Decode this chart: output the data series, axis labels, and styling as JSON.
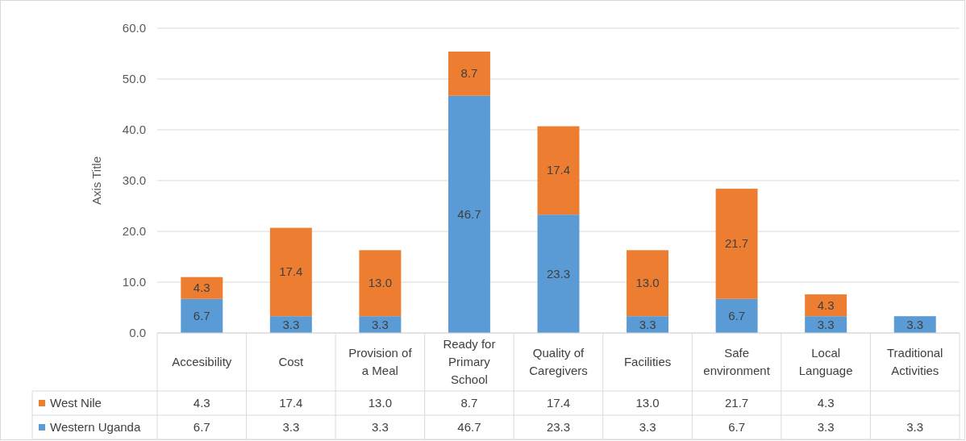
{
  "chart_data": {
    "type": "bar",
    "stacked": true,
    "ylabel": "Axis Title",
    "categories": [
      "Accesibility",
      "Cost",
      "Provision of a Meal",
      "Ready for Primary School",
      "Quality of Caregivers",
      "Facilities",
      "Safe environment",
      "Local Language",
      "Traditional Activities"
    ],
    "series": [
      {
        "name": "Western Uganda",
        "color": "#5b9bd5",
        "values": [
          6.7,
          3.3,
          3.3,
          46.7,
          23.3,
          3.3,
          6.7,
          3.3,
          3.3
        ],
        "value_labels": [
          "6.7",
          "3.3",
          "3.3",
          "46.7",
          "23.3",
          "3.3",
          "6.7",
          "3.3",
          "3.3"
        ]
      },
      {
        "name": "West Nile",
        "color": "#ed7d31",
        "values": [
          4.3,
          17.4,
          13.0,
          8.7,
          17.4,
          13.0,
          21.7,
          4.3,
          null
        ],
        "value_labels": [
          "4.3",
          "17.4",
          "13.0",
          "8.7",
          "17.4",
          "13.0",
          "21.7",
          "4.3",
          null
        ]
      }
    ],
    "ylim": [
      0,
      60
    ],
    "yticks": [
      {
        "value": 0,
        "label": "0.0"
      },
      {
        "value": 10,
        "label": "10.0"
      },
      {
        "value": 20,
        "label": "20.0"
      },
      {
        "value": 30,
        "label": "30.0"
      },
      {
        "value": 40,
        "label": "40.0"
      },
      {
        "value": 50,
        "label": "50.0"
      },
      {
        "value": 60,
        "label": "60.0"
      }
    ],
    "grid": "y",
    "legend": "bottom"
  }
}
